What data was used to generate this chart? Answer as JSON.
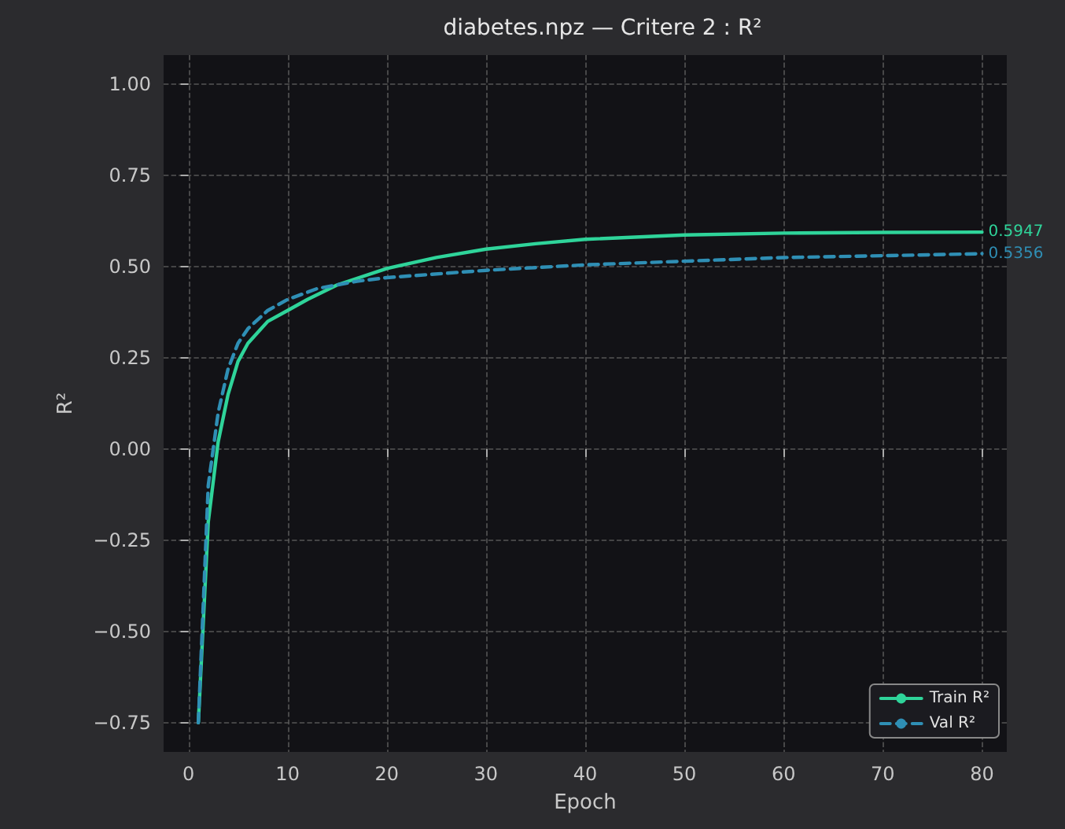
{
  "chart_data": {
    "type": "line",
    "title": "diabetes.npz — Critere 2 : R²",
    "xlabel": "Epoch",
    "ylabel": "R²",
    "xlim": [
      -2.5,
      82.5
    ],
    "xticks": [
      0,
      10,
      20,
      30,
      40,
      50,
      60,
      70,
      80
    ],
    "ylim": [
      -0.83,
      1.08
    ],
    "yticks": [
      {
        "value": -0.75,
        "label": "−0.75"
      },
      {
        "value": -0.5,
        "label": "−0.50"
      },
      {
        "value": -0.25,
        "label": "−0.25"
      },
      {
        "value": 0,
        "label": "0.00"
      },
      {
        "value": 0.25,
        "label": "0.25"
      },
      {
        "value": 0.5,
        "label": "0.50"
      },
      {
        "value": 0.75,
        "label": "0.75"
      },
      {
        "value": 1,
        "label": "1.00"
      }
    ],
    "grid": true,
    "legend": "bottom right",
    "series": [
      {
        "name": "Train R²",
        "color": "#2fd49a",
        "line_style": "solid",
        "x": [
          1,
          2,
          3,
          4,
          5,
          6,
          7,
          8,
          10,
          12,
          15,
          20,
          25,
          30,
          35,
          40,
          50,
          60,
          70,
          80
        ],
        "values": [
          -0.75,
          -0.2,
          0.02,
          0.15,
          0.24,
          0.29,
          0.32,
          0.35,
          0.38,
          0.41,
          0.45,
          0.495,
          0.525,
          0.548,
          0.563,
          0.575,
          0.587,
          0.592,
          0.594,
          0.5947
        ]
      },
      {
        "name": "Val R²",
        "color": "#2f8fb5",
        "line_style": "dashed",
        "x": [
          1,
          2,
          3,
          4,
          5,
          6,
          8,
          10,
          13,
          17,
          20,
          30,
          40,
          50,
          60,
          70,
          80
        ],
        "values": [
          -0.75,
          -0.1,
          0.1,
          0.22,
          0.29,
          0.33,
          0.38,
          0.41,
          0.44,
          0.46,
          0.47,
          0.49,
          0.505,
          0.515,
          0.525,
          0.53,
          0.5356
        ]
      }
    ],
    "annotations": [
      {
        "text": "0.5947",
        "x": 80,
        "y": 0.5947
      },
      {
        "text": "0.5356",
        "x": 80,
        "y": 0.5356
      }
    ]
  }
}
